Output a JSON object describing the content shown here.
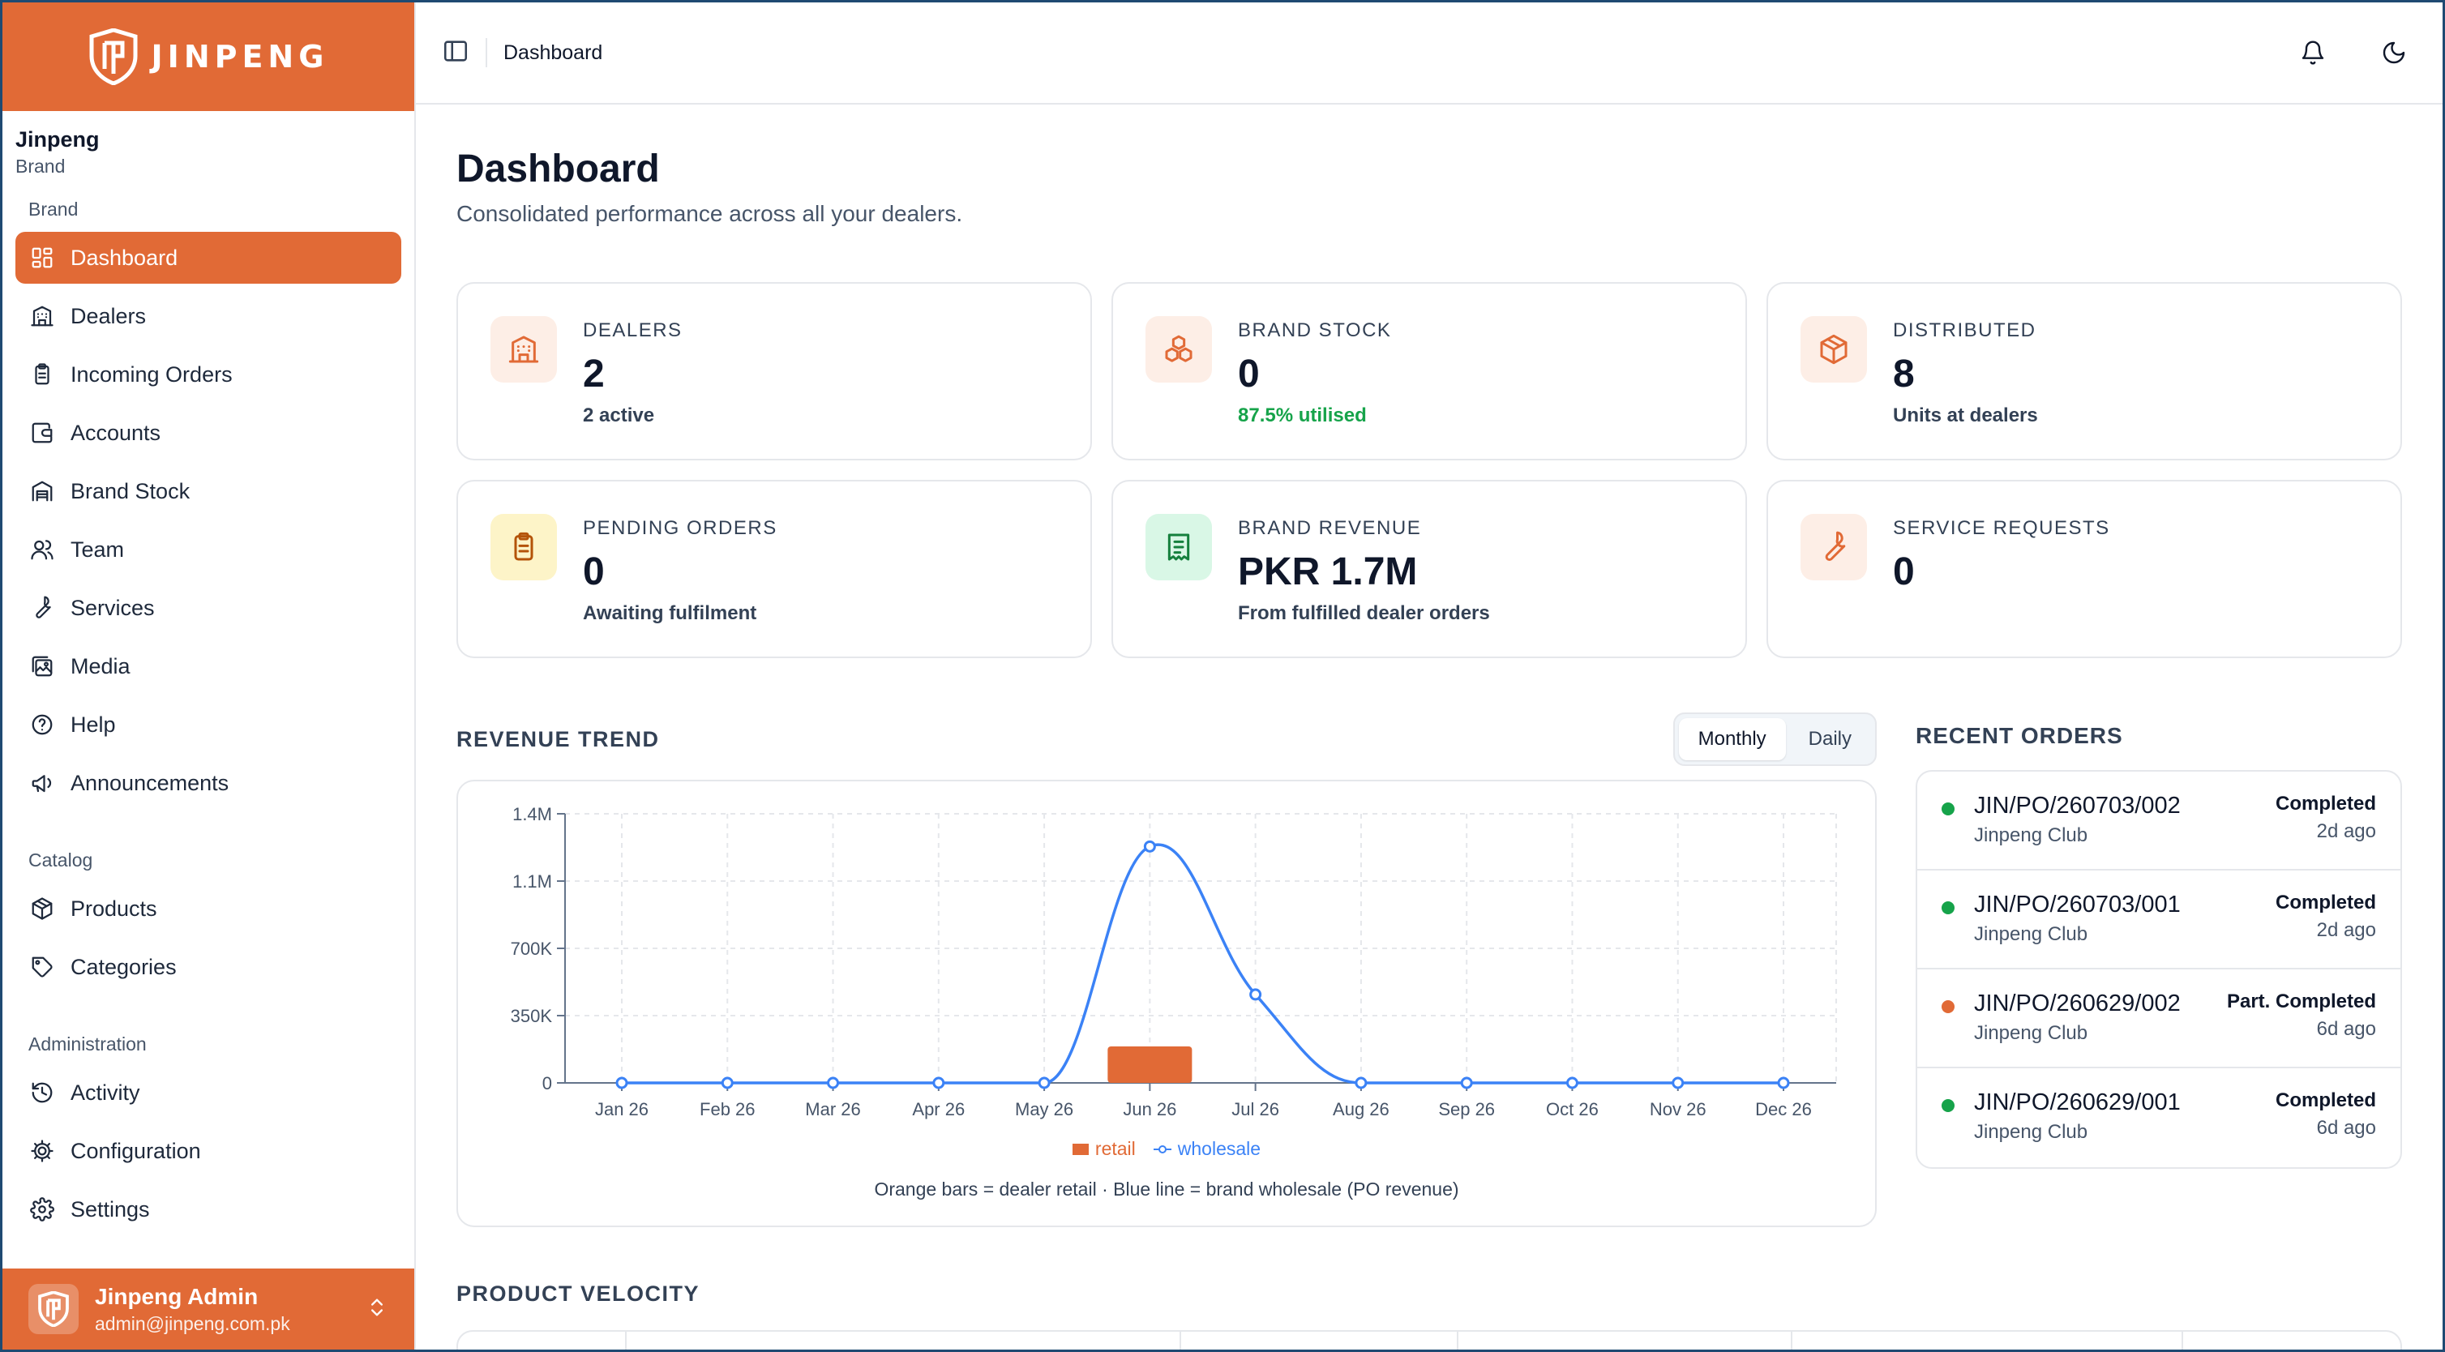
{
  "brand": {
    "wordmark": "JINPENG",
    "accent": "#e16a36"
  },
  "org": {
    "name": "Jinpeng",
    "role": "Brand"
  },
  "nav": {
    "groups": [
      {
        "label": "Brand",
        "items": [
          {
            "label": "Dashboard",
            "icon": "dashboard-icon",
            "active": true
          },
          {
            "label": "Dealers",
            "icon": "building-icon"
          },
          {
            "label": "Incoming Orders",
            "icon": "clipboard-icon"
          },
          {
            "label": "Accounts",
            "icon": "wallet-icon"
          },
          {
            "label": "Brand Stock",
            "icon": "warehouse-icon"
          },
          {
            "label": "Team",
            "icon": "users-icon"
          },
          {
            "label": "Services",
            "icon": "wrench-icon"
          },
          {
            "label": "Media",
            "icon": "images-icon"
          },
          {
            "label": "Help",
            "icon": "help-circle-icon"
          },
          {
            "label": "Announcements",
            "icon": "megaphone-icon"
          }
        ]
      },
      {
        "label": "Catalog",
        "items": [
          {
            "label": "Products",
            "icon": "package-icon"
          },
          {
            "label": "Categories",
            "icon": "tag-icon"
          }
        ]
      },
      {
        "label": "Administration",
        "items": [
          {
            "label": "Activity",
            "icon": "history-icon"
          },
          {
            "label": "Configuration",
            "icon": "cog-icon"
          },
          {
            "label": "Settings",
            "icon": "settings-icon"
          }
        ]
      }
    ]
  },
  "user": {
    "name": "Jinpeng Admin",
    "email": "admin@jinpeng.com.pk"
  },
  "topbar": {
    "breadcrumb": "Dashboard"
  },
  "page": {
    "title": "Dashboard",
    "subtitle": "Consolidated performance across all your dealers."
  },
  "stats": [
    {
      "label": "DEALERS",
      "value": "2",
      "sub": "2 active",
      "icon": "building-icon",
      "sub_color": "default",
      "icon_bg": "#fdeee6",
      "icon_color": "#e16a36"
    },
    {
      "label": "BRAND STOCK",
      "value": "0",
      "sub": "87.5% utilised",
      "icon": "boxes-icon",
      "sub_color": "green",
      "icon_bg": "#fdeee6",
      "icon_color": "#e16a36"
    },
    {
      "label": "DISTRIBUTED",
      "value": "8",
      "sub": "Units at dealers",
      "icon": "package-icon",
      "sub_color": "default",
      "icon_bg": "#fdeee6",
      "icon_color": "#e16a36"
    },
    {
      "label": "PENDING ORDERS",
      "value": "0",
      "sub": "Awaiting fulfilment",
      "icon": "clipboard-icon",
      "sub_color": "default",
      "icon_bg": "#fdf4c8",
      "icon_color": "#b45309"
    },
    {
      "label": "BRAND REVENUE",
      "value": "PKR 1.7M",
      "sub": "From fulfilled dealer orders",
      "icon": "receipt-icon",
      "sub_color": "default",
      "icon_bg": "#d9f7e6",
      "icon_color": "#15803d"
    },
    {
      "label": "SERVICE REQUESTS",
      "value": "0",
      "sub": "",
      "icon": "wrench-icon",
      "sub_color": "default",
      "icon_bg": "#fdeee6",
      "icon_color": "#e16a36"
    }
  ],
  "trend": {
    "title": "REVENUE TREND",
    "toggle": [
      {
        "label": "Monthly",
        "active": true
      },
      {
        "label": "Daily",
        "active": false
      }
    ],
    "note": "Orange bars = dealer retail · Blue line = brand wholesale (PO revenue)",
    "legend": {
      "retail": "retail",
      "wholesale": "wholesale"
    }
  },
  "chart_data": {
    "type": "bar",
    "categories": [
      "Jan 26",
      "Feb 26",
      "Mar 26",
      "Apr 26",
      "May 26",
      "Jun 26",
      "Jul 26",
      "Aug 26",
      "Sep 26",
      "Oct 26",
      "Nov 26",
      "Dec 26"
    ],
    "series": [
      {
        "name": "retail",
        "type": "bar",
        "color": "#e16a36",
        "values": [
          0,
          0,
          0,
          0,
          0,
          190000,
          0,
          0,
          0,
          0,
          0,
          0
        ]
      },
      {
        "name": "wholesale",
        "type": "line",
        "color": "#3b82f6",
        "values": [
          0,
          0,
          0,
          0,
          0,
          1230000,
          460000,
          0,
          0,
          0,
          0,
          0
        ]
      }
    ],
    "yticks": [
      "0",
      "350K",
      "700K",
      "1.1M",
      "1.4M"
    ],
    "ytick_values": [
      0,
      350000,
      700000,
      1050000,
      1400000
    ],
    "ylim": [
      0,
      1400000
    ],
    "grid": true,
    "legend_position": "bottom"
  },
  "orders": {
    "title": "RECENT ORDERS",
    "items": [
      {
        "id": "JIN/PO/260703/002",
        "dealer": "Jinpeng Club",
        "status": "Completed",
        "time": "2d ago",
        "dot": "#16a34a"
      },
      {
        "id": "JIN/PO/260703/001",
        "dealer": "Jinpeng Club",
        "status": "Completed",
        "time": "2d ago",
        "dot": "#16a34a"
      },
      {
        "id": "JIN/PO/260629/002",
        "dealer": "Jinpeng Club",
        "status": "Part. Completed",
        "time": "6d ago",
        "dot": "#e16a36"
      },
      {
        "id": "JIN/PO/260629/001",
        "dealer": "Jinpeng Club",
        "status": "Completed",
        "time": "6d ago",
        "dot": "#16a34a"
      }
    ]
  },
  "velocity": {
    "title": "PRODUCT VELOCITY"
  }
}
